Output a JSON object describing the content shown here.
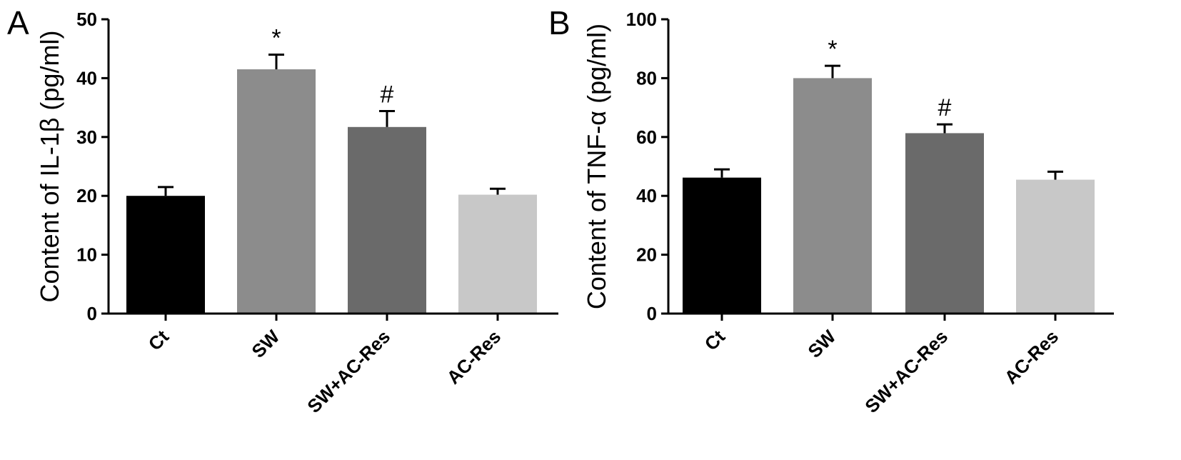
{
  "chart_data": [
    {
      "type": "bar",
      "panel": "A",
      "ylabel": "Content of IL-1β (pg/ml)",
      "xlabel": "",
      "categories": [
        "Ct",
        "SW",
        "SW+AC-Res",
        "AC-Res"
      ],
      "values": [
        20,
        41.5,
        31.7,
        20.2
      ],
      "errors": [
        1.5,
        2.5,
        2.7,
        1.0
      ],
      "annotations": [
        "",
        "*",
        "#",
        ""
      ],
      "colors": [
        "#000000",
        "#8c8c8c",
        "#6a6a6a",
        "#c8c8c8"
      ],
      "ylim": [
        0,
        50
      ],
      "yticks": [
        0,
        10,
        20,
        30,
        40,
        50
      ],
      "grid": false,
      "legend": "none"
    },
    {
      "type": "bar",
      "panel": "B",
      "ylabel": "Content of TNF-α (pg/ml)",
      "xlabel": "",
      "categories": [
        "Ct",
        "SW",
        "SW+AC-Res",
        "AC-Res"
      ],
      "values": [
        46.2,
        80,
        61.3,
        45.5
      ],
      "errors": [
        2.8,
        4.2,
        3.0,
        2.7
      ],
      "annotations": [
        "",
        "*",
        "#",
        ""
      ],
      "colors": [
        "#000000",
        "#8c8c8c",
        "#6a6a6a",
        "#c8c8c8"
      ],
      "ylim": [
        0,
        100
      ],
      "yticks": [
        0,
        20,
        40,
        60,
        80,
        100
      ],
      "grid": false,
      "legend": "none"
    }
  ]
}
